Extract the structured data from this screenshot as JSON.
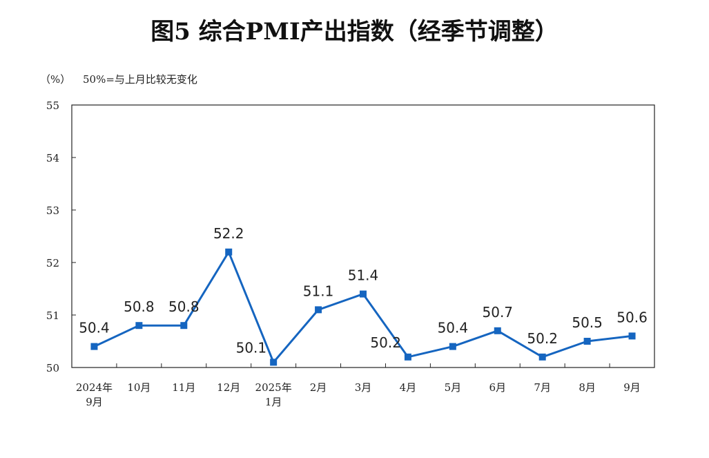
{
  "title": "图5  综合PMI产出指数（经季节调整）",
  "unit_label": "（%）",
  "note": "50%=与上月比较无变化",
  "colors": {
    "line": "#1565C0",
    "axis": "#222222"
  },
  "chart_data": {
    "type": "line",
    "title": "图5  综合PMI产出指数（经季节调整）",
    "ylabel": "（%）",
    "ylim": [
      50,
      55
    ],
    "yticks": [
      50,
      51,
      52,
      53,
      54,
      55
    ],
    "grid": false,
    "categories": [
      [
        "2024年",
        "9月"
      ],
      [
        "10月"
      ],
      [
        "11月"
      ],
      [
        "12月"
      ],
      [
        "2025年",
        "1月"
      ],
      [
        "2月"
      ],
      [
        "3月"
      ],
      [
        "4月"
      ],
      [
        "5月"
      ],
      [
        "6月"
      ],
      [
        "7月"
      ],
      [
        "8月"
      ],
      [
        "9月"
      ]
    ],
    "series": [
      {
        "values": [
          50.4,
          50.8,
          50.8,
          52.2,
          50.1,
          51.1,
          51.4,
          50.2,
          50.4,
          50.7,
          50.2,
          50.5,
          50.6
        ],
        "data_labels": [
          "50.4",
          "50.8",
          "50.8",
          "52.2",
          "50.1",
          "51.1",
          "51.4",
          "50.2",
          "50.4",
          "50.7",
          "50.2",
          "50.5",
          "50.6"
        ]
      }
    ]
  }
}
